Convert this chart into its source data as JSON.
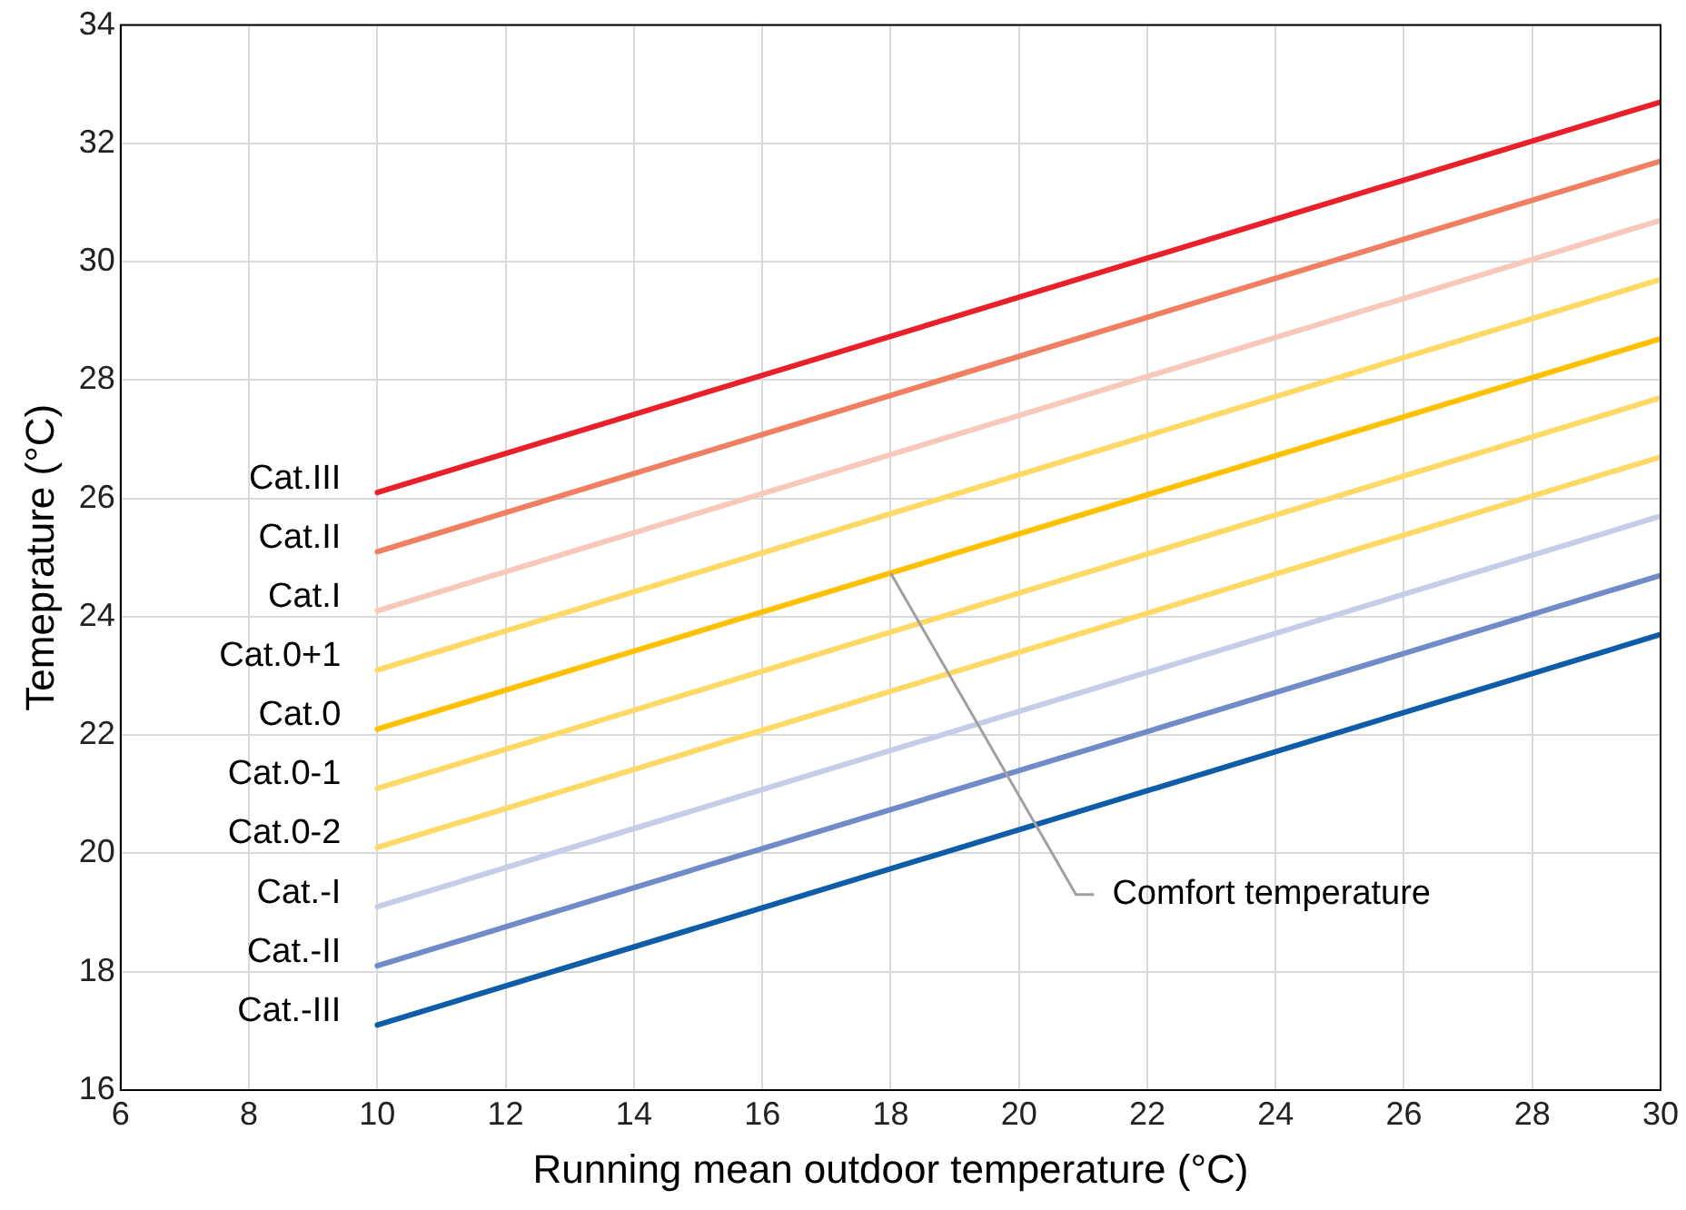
{
  "chart_data": {
    "type": "line",
    "xlabel": "Running mean outdoor temperature (°C)",
    "ylabel": "Temeprature (°C)",
    "x": [
      10,
      30
    ],
    "xlim": [
      6,
      30
    ],
    "xticks": [
      6,
      8,
      10,
      12,
      14,
      16,
      18,
      20,
      22,
      24,
      26,
      28,
      30
    ],
    "ylim": [
      16,
      34
    ],
    "yticks": [
      16,
      18,
      20,
      22,
      24,
      26,
      28,
      30,
      32,
      34
    ],
    "grid": true,
    "legend": false,
    "marker": "none",
    "line_style": "solid",
    "annotations": [
      {
        "text": "Comfort temperature",
        "x": 18,
        "y": 24.74
      }
    ],
    "series": [
      {
        "name": "Cat.III",
        "color": "#e8202a",
        "values": [
          26.1,
          32.7
        ]
      },
      {
        "name": "Cat.II",
        "color": "#f07f62",
        "values": [
          25.1,
          31.7
        ]
      },
      {
        "name": "Cat.I",
        "color": "#f8c9ba",
        "values": [
          24.1,
          30.7
        ]
      },
      {
        "name": "Cat.0+1",
        "color": "#ffd966",
        "values": [
          23.1,
          29.7
        ]
      },
      {
        "name": "Cat.0",
        "color": "#ffc000",
        "values": [
          22.1,
          28.7
        ]
      },
      {
        "name": "Cat.0-1",
        "color": "#ffd966",
        "values": [
          21.1,
          27.7
        ]
      },
      {
        "name": "Cat.0-2",
        "color": "#ffd966",
        "values": [
          20.1,
          26.7
        ]
      },
      {
        "name": "Cat.-I",
        "color": "#c5cde9",
        "values": [
          19.1,
          25.7
        ]
      },
      {
        "name": "Cat.-II",
        "color": "#6f8cc8",
        "values": [
          18.1,
          24.7
        ]
      },
      {
        "name": "Cat.-III",
        "color": "#0f5ca8",
        "values": [
          17.1,
          23.7
        ]
      }
    ]
  }
}
